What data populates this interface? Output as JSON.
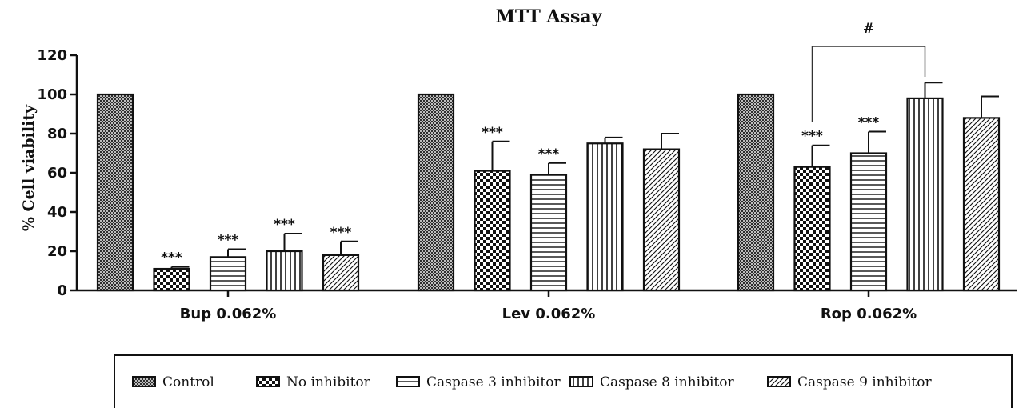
{
  "chart_data": {
    "type": "bar",
    "title": "MTT Assay",
    "ylabel": "% Cell viability",
    "xlabel": "",
    "ylim": [
      0,
      120
    ],
    "yticks": [
      0,
      20,
      40,
      60,
      80,
      100,
      120
    ],
    "categories": [
      "Bup 0.062%",
      "Lev 0.062%",
      "Rop 0.062%"
    ],
    "series": [
      {
        "name": "Control",
        "pattern": "crosshatch",
        "values": [
          100,
          100,
          100
        ],
        "errors": [
          0,
          0,
          0
        ],
        "annotations": [
          "",
          "",
          ""
        ]
      },
      {
        "name": "No inhibitor",
        "pattern": "checker",
        "values": [
          11,
          61,
          63
        ],
        "errors": [
          1,
          15,
          11
        ],
        "annotations": [
          "***",
          "***",
          "***"
        ]
      },
      {
        "name": "Caspase 3 inhibitor",
        "pattern": "horizontal",
        "values": [
          17,
          59,
          70
        ],
        "errors": [
          4,
          6,
          11
        ],
        "annotations": [
          "***",
          "***",
          "***"
        ]
      },
      {
        "name": "Caspase 8 inhibitor",
        "pattern": "vertical",
        "values": [
          20,
          75,
          98
        ],
        "errors": [
          9,
          3,
          8
        ],
        "annotations": [
          "***",
          "",
          ""
        ]
      },
      {
        "name": "Caspase 9 inhibitor",
        "pattern": "diagonal",
        "values": [
          18,
          72,
          88
        ],
        "errors": [
          7,
          8,
          11
        ],
        "annotations": [
          "***",
          "",
          ""
        ]
      }
    ],
    "comparison": {
      "category": "Rop 0.062%",
      "from_series": "No inhibitor",
      "to_series": "Caspase 8 inhibitor",
      "label": "#"
    },
    "grid": false,
    "legend_position": "bottom"
  }
}
